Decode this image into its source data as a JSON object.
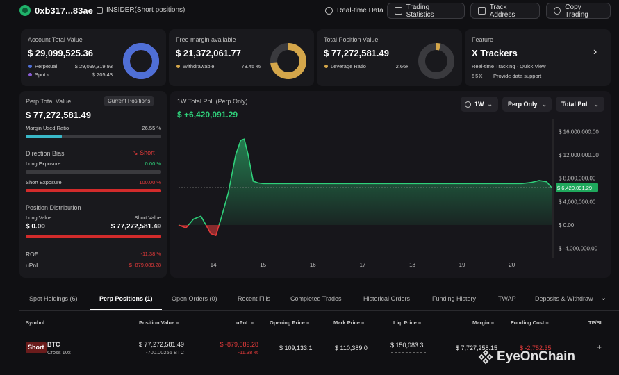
{
  "header": {
    "address": "0xb317...83ae",
    "tag": "INSIDER(Short positions)",
    "buttons": {
      "realtime": "Real-time Data",
      "stats": "Trading Statistics",
      "track": "Track Address",
      "copy": "Copy Trading"
    }
  },
  "account": {
    "label": "Account Total Value",
    "value": "$ 29,099,525.36",
    "perp_label": "Perpetual",
    "perp_value": "$ 29,099,319.93",
    "spot_label": "Spot",
    "spot_value": "$ 205.43",
    "perp_share": 0.99999,
    "colors": {
      "perp": "#4f6fd6",
      "spot": "#8a5cd6"
    }
  },
  "margin": {
    "label": "Free margin available",
    "value": "$ 21,372,061.77",
    "withdrawable_label": "Withdrawable",
    "withdrawable_pct": "73.45 %",
    "share": 0.7345,
    "color": "#d4a64a"
  },
  "position": {
    "label": "Total Position Value",
    "value": "$ 77,272,581.49",
    "leverage_label": "Leverage Ratio",
    "leverage": "2.66x",
    "share": 0.04,
    "color": "#d4a64a"
  },
  "feature": {
    "label": "Feature",
    "title": "X Trackers",
    "desc": "Real-time Tracking · Quick View",
    "provider_logo": "55X",
    "provider": "Provide data support"
  },
  "perp": {
    "label": "Perp Total Value",
    "current_btn": "Current Positions",
    "value": "$ 77,272,581.49",
    "margin_used_label": "Margin Used Ratio",
    "margin_used": "26.55 %",
    "margin_used_frac": 0.2655,
    "bias_label": "Direction Bias",
    "bias": "Short",
    "long_exp_label": "Long Exposure",
    "long_exp": "0.00 %",
    "short_exp_label": "Short Exposure",
    "short_exp": "100.00 %",
    "short_exp_frac": 1.0,
    "dist_label": "Position Distribution",
    "long_value_label": "Long Value",
    "short_value_label": "Short Value",
    "long_value": "$ 0.00",
    "short_value": "$ 77,272,581.49",
    "roe_label": "ROE",
    "roe": "-11.38 %",
    "upnl_label": "uPnL",
    "upnl": "$ -879,089.28"
  },
  "pnl": {
    "title": "1W Total PnL (Perp Only)",
    "value": "$ +6,420,091.29",
    "controls": {
      "range": "1W",
      "scope": "Perp Only",
      "metric": "Total PnL"
    },
    "current_label": "$ 6,420,091.29"
  },
  "chart_data": {
    "type": "area",
    "xlabel": "",
    "ylabel": "",
    "ylim": [
      -5000000,
      17000000
    ],
    "y_ticks": [
      16000000,
      12000000,
      8000000,
      4000000,
      0,
      -4000000
    ],
    "y_tick_labels": [
      "$ 16,000,000.00",
      "$ 12,000,000.00",
      "$ 8,000,000.00",
      "$ 4,000,000.00",
      "$ 0.00",
      "$ -4,000,000.00"
    ],
    "x_tick_labels": [
      "14",
      "15",
      "16",
      "17",
      "18",
      "19",
      "20"
    ],
    "x_ticks": [
      14,
      15,
      16,
      17,
      18,
      19,
      20
    ],
    "xlim": [
      13.3,
      20.8
    ],
    "series": [
      {
        "x": [
          13.3,
          13.45,
          13.6,
          13.75,
          13.85,
          13.95,
          14.05,
          14.15,
          14.3,
          14.45,
          14.55,
          14.62,
          14.7,
          14.8,
          14.9,
          15.0,
          15.5,
          16.0,
          17.0,
          18.0,
          19.0,
          20.0,
          20.2,
          20.4,
          20.55,
          20.7,
          20.8
        ],
        "y": [
          0,
          -500000,
          1000000,
          1500000,
          0,
          -1500000,
          -1800000,
          1000000,
          5500000,
          12000000,
          14500000,
          14700000,
          12000000,
          7500000,
          7200000,
          7100000,
          7100000,
          7100000,
          7100000,
          7100000,
          7100000,
          7100000,
          7100000,
          7300000,
          7600000,
          7400000,
          6420091.29
        ]
      }
    ],
    "colors": {
      "positive": "#2fd07a",
      "negative": "#e23a3a"
    }
  },
  "tabs": [
    "Spot Holdings (6)",
    "Perp Positions (1)",
    "Open Orders (0)",
    "Recent Fills",
    "Completed Trades",
    "Historical Orders",
    "Funding History",
    "TWAP",
    "Deposits & Withdraw"
  ],
  "table": {
    "headers": [
      "Symbol",
      "Position Value",
      "uPnL",
      "Opening Price",
      "Mark Price",
      "Liq. Price",
      "Margin",
      "Funding Cost",
      "TP/SL"
    ],
    "row": {
      "side": "Short",
      "symbol": "BTC",
      "mode": "Cross 10x",
      "position_value": "$ 77,272,581.49",
      "position_size": "-700.00255 BTC",
      "upnl": "$ -879,089.28",
      "upnl_pct": "-11.38 %",
      "opening_price": "$ 109,133.1",
      "mark_price": "$ 110,389.0",
      "liq_price": "$ 150,083.3",
      "margin": "$ 7,727,258.15",
      "funding_cost": "$ -2,752.35",
      "tpsl": "+"
    }
  },
  "watermark": "EyeOnChain"
}
